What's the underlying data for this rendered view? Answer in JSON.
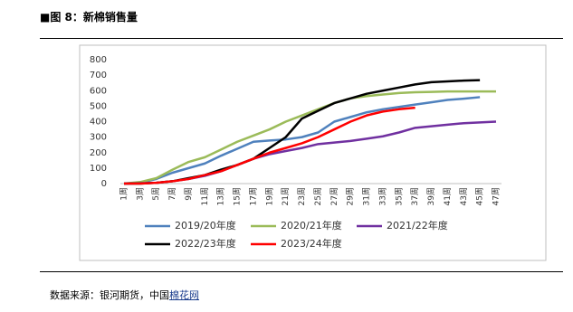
{
  "header": {
    "title": "■图 8：新棉销售量"
  },
  "chart_data": {
    "type": "line",
    "categories": [
      "1周",
      "3周",
      "5周",
      "7周",
      "9周",
      "11周",
      "13周",
      "15周",
      "17周",
      "19周",
      "21周",
      "23周",
      "25周",
      "27周",
      "29周",
      "31周",
      "33周",
      "35周",
      "37周",
      "39周",
      "41周",
      "43周",
      "45周",
      "47周"
    ],
    "ylim": [
      0,
      800
    ],
    "yticks": [
      0,
      100,
      200,
      300,
      400,
      500,
      600,
      700,
      800
    ],
    "grid": false,
    "series": [
      {
        "name": "2019/20年度",
        "color": "#4f81bd",
        "values": [
          0,
          5,
          30,
          70,
          100,
          130,
          180,
          225,
          270,
          278,
          285,
          300,
          330,
          400,
          430,
          460,
          480,
          495,
          510,
          525,
          540,
          548,
          558,
          null
        ]
      },
      {
        "name": "2020/21年度",
        "color": "#9bbb59",
        "values": [
          0,
          10,
          35,
          90,
          140,
          170,
          220,
          270,
          310,
          350,
          400,
          440,
          480,
          520,
          550,
          565,
          575,
          585,
          590,
          592,
          595,
          595,
          595,
          595
        ]
      },
      {
        "name": "2021/22年度",
        "color": "#7030a0",
        "values": [
          0,
          2,
          5,
          15,
          30,
          50,
          80,
          120,
          160,
          190,
          210,
          230,
          255,
          265,
          275,
          290,
          305,
          330,
          360,
          370,
          380,
          390,
          395,
          400
        ]
      },
      {
        "name": "2022/23年度",
        "color": "#000000",
        "values": [
          0,
          0,
          5,
          15,
          35,
          55,
          90,
          120,
          160,
          230,
          300,
          420,
          470,
          520,
          550,
          580,
          600,
          620,
          640,
          655,
          660,
          665,
          668,
          null
        ]
      },
      {
        "name": "2023/24年度",
        "color": "#ff0000",
        "values": [
          0,
          0,
          5,
          15,
          30,
          55,
          80,
          120,
          160,
          200,
          230,
          260,
          300,
          350,
          400,
          440,
          465,
          480,
          490,
          null,
          null,
          null,
          null,
          null
        ]
      }
    ]
  },
  "source": {
    "text": "数据来源：银河期货，中国",
    "link": "棉花网"
  }
}
